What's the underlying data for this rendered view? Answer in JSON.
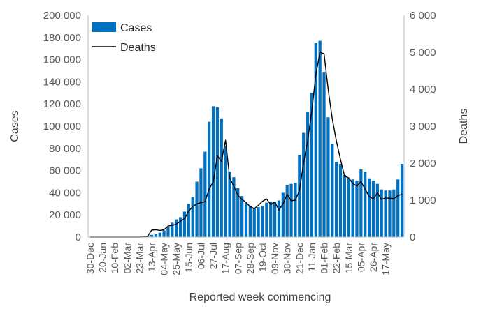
{
  "chart_data": {
    "type": "bar",
    "title": "",
    "xlabel": "Reported week commencing",
    "ylabel": "Cases",
    "y2label": "Deaths",
    "ylim": [
      0,
      200000
    ],
    "y2lim": [
      0,
      6000
    ],
    "yticks": [
      "0",
      "20 000",
      "40 000",
      "60 000",
      "80 000",
      "100 000",
      "120 000",
      "140 000",
      "160 000",
      "180 000",
      "200 000"
    ],
    "y2ticks": [
      "0",
      "1 000",
      "2 000",
      "3 000",
      "4 000",
      "5 000",
      "6 000"
    ],
    "xtick_labels": [
      "30-Dec",
      "20-Jan",
      "10-Feb",
      "02-Mar",
      "23-Mar",
      "13-Apr",
      "04-May",
      "25-May",
      "15-Jun",
      "06-Jul",
      "27-Jul",
      "17-Aug",
      "07-Sep",
      "28-Sep",
      "19-Oct",
      "09-Nov",
      "30-Nov",
      "21-Dec",
      "11-Jan",
      "01-Feb",
      "22-Feb",
      "15-Mar",
      "05-Apr",
      "26-Apr",
      "17-May"
    ],
    "xtick_every": 3,
    "legend_position": "top-left",
    "grid": false,
    "colors": {
      "bars": "#0070C0",
      "line": "#000000",
      "axis": "#BFBFBF"
    },
    "series": [
      {
        "name": "Cases",
        "type": "bar",
        "axis": "left",
        "values": [
          0,
          0,
          0,
          0,
          0,
          0,
          0,
          0,
          0,
          0,
          0,
          0,
          0,
          0,
          1000,
          2000,
          3000,
          4000,
          6000,
          9000,
          13000,
          16000,
          18000,
          23000,
          30000,
          36000,
          50000,
          62000,
          77000,
          104000,
          118000,
          117000,
          107000,
          82000,
          59000,
          54000,
          44000,
          37000,
          31000,
          28000,
          26000,
          27000,
          28000,
          31000,
          32000,
          32000,
          33000,
          40000,
          47000,
          48000,
          49000,
          74000,
          94000,
          113000,
          130000,
          175000,
          177000,
          149000,
          108000,
          84000,
          68000,
          66000,
          56000,
          53000,
          52000,
          51000,
          61000,
          59000,
          53000,
          51000,
          48000,
          43000,
          42000,
          42000,
          43000,
          52000,
          66000
        ]
      },
      {
        "name": "Deaths",
        "type": "line",
        "axis": "right",
        "values": [
          0,
          0,
          0,
          0,
          0,
          0,
          0,
          0,
          0,
          0,
          0,
          0,
          0,
          5,
          20,
          190,
          200,
          180,
          200,
          300,
          320,
          350,
          430,
          500,
          700,
          830,
          900,
          930,
          960,
          1300,
          1500,
          2200,
          2050,
          2620,
          1600,
          1380,
          1130,
          1020,
          940,
          820,
          770,
          860,
          970,
          1030,
          880,
          950,
          730,
          900,
          1150,
          980,
          1000,
          1260,
          2000,
          2600,
          3400,
          4400,
          5000,
          4960,
          4000,
          3200,
          2600,
          2100,
          1650,
          1600,
          1450,
          1380,
          1500,
          1300,
          1100,
          1030,
          1200,
          1020,
          1060,
          1050,
          1040,
          1120,
          1160
        ]
      }
    ]
  }
}
